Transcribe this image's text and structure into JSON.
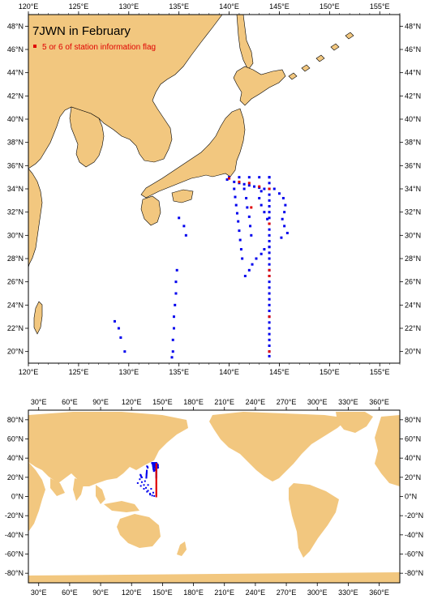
{
  "top_map": {
    "title": "7JWN in February",
    "legend_label": "5 or 6 of station information flag",
    "lon_labels": [
      "120°E",
      "125°E",
      "130°E",
      "135°E",
      "140°E",
      "145°E",
      "150°E",
      "155°E"
    ],
    "lat_labels": [
      "20°N",
      "22°N",
      "24°N",
      "26°N",
      "28°N",
      "30°N",
      "32°N",
      "34°N",
      "36°N",
      "38°N",
      "40°N",
      "42°N",
      "44°N",
      "46°N",
      "48°N"
    ]
  },
  "bottom_map": {
    "lon_labels": [
      "30°E",
      "60°E",
      "90°E",
      "120°E",
      "150°E",
      "180°E",
      "210°E",
      "240°E",
      "270°E",
      "300°E",
      "330°E",
      "360°E"
    ],
    "lat_labels": [
      "80°N",
      "60°N",
      "40°N",
      "20°N",
      "0°N",
      "-20°N",
      "-40°N",
      "-60°N",
      "-80°N"
    ]
  },
  "colors": {
    "land": "#f2c77f",
    "station": "#0000ee",
    "flagged": "#e00000"
  },
  "chart_data": {
    "type": "scatter",
    "title": "7JWN in February",
    "series": [
      {
        "name": "",
        "color": "#0000ee",
        "points": [
          [
            144,
            19.6
          ],
          [
            144,
            20
          ],
          [
            144,
            20.5
          ],
          [
            144,
            21
          ],
          [
            144,
            21.5
          ],
          [
            144,
            22
          ],
          [
            144,
            22.5
          ],
          [
            144,
            23
          ],
          [
            144,
            23.5
          ],
          [
            144,
            24
          ],
          [
            144,
            24.5
          ],
          [
            144,
            25
          ],
          [
            144,
            25.5
          ],
          [
            144,
            26
          ],
          [
            144,
            26.5
          ],
          [
            144,
            27
          ],
          [
            144,
            27.5
          ],
          [
            144,
            28
          ],
          [
            144,
            28.5
          ],
          [
            144,
            29
          ],
          [
            144,
            29.5
          ],
          [
            144,
            30
          ],
          [
            144,
            30.5
          ],
          [
            144,
            31
          ],
          [
            144,
            31.5
          ],
          [
            144,
            32
          ],
          [
            144,
            32.5
          ],
          [
            144,
            33
          ],
          [
            144,
            33.5
          ],
          [
            144,
            34
          ],
          [
            144,
            34.5
          ],
          [
            144,
            35
          ],
          [
            140,
            35
          ],
          [
            141,
            35
          ],
          [
            142,
            35
          ],
          [
            143,
            35
          ],
          [
            144,
            35
          ],
          [
            139.8,
            34.8
          ],
          [
            140.5,
            34.6
          ],
          [
            141,
            34.5
          ],
          [
            141.5,
            34.4
          ],
          [
            142,
            34.3
          ],
          [
            142.5,
            34.2
          ],
          [
            143,
            34.1
          ],
          [
            143.5,
            34
          ],
          [
            143.2,
            33.8
          ],
          [
            143,
            33.2
          ],
          [
            143.2,
            32.6
          ],
          [
            143.5,
            32
          ],
          [
            143.8,
            31.4
          ],
          [
            144.5,
            34
          ],
          [
            145,
            33.6
          ],
          [
            145.4,
            33.2
          ],
          [
            145.6,
            32.6
          ],
          [
            145.5,
            32
          ],
          [
            145.3,
            31.4
          ],
          [
            145.5,
            30.8
          ],
          [
            145.8,
            30.2
          ],
          [
            145.2,
            29.8
          ],
          [
            144,
            29
          ],
          [
            143.5,
            28.8
          ],
          [
            143.2,
            28.4
          ],
          [
            142.7,
            28
          ],
          [
            142.3,
            27.5
          ],
          [
            142,
            27
          ],
          [
            141.6,
            26.5
          ],
          [
            140.5,
            34
          ],
          [
            140.6,
            33.3
          ],
          [
            140.7,
            32.6
          ],
          [
            140.8,
            31.9
          ],
          [
            140.9,
            31.2
          ],
          [
            141,
            30.4
          ],
          [
            141.1,
            29.6
          ],
          [
            141.2,
            28.8
          ],
          [
            141.3,
            28
          ],
          [
            141.5,
            34
          ],
          [
            141.7,
            33.2
          ],
          [
            141.8,
            32.4
          ],
          [
            142,
            31.6
          ],
          [
            142.1,
            30.8
          ],
          [
            142.2,
            30
          ],
          [
            135,
            31.5
          ],
          [
            135.5,
            30.8
          ],
          [
            135.7,
            30
          ],
          [
            134.8,
            27
          ],
          [
            134.7,
            26
          ],
          [
            134.7,
            25
          ],
          [
            134.6,
            24
          ],
          [
            134.5,
            23
          ],
          [
            134.5,
            22
          ],
          [
            134.4,
            21
          ],
          [
            134.4,
            20
          ],
          [
            134.3,
            19.5
          ],
          [
            128.6,
            22.6
          ],
          [
            129,
            22
          ],
          [
            129.2,
            21.2
          ],
          [
            129.6,
            20
          ]
        ]
      },
      {
        "name": "5 or 6 of station information flag",
        "color": "#e00000",
        "points": [
          [
            140,
            34.9
          ],
          [
            141,
            34.6
          ],
          [
            142,
            34.5
          ],
          [
            143,
            34.2
          ],
          [
            144,
            34
          ],
          [
            144,
            31
          ],
          [
            144,
            27
          ],
          [
            144,
            26.5
          ],
          [
            144,
            23
          ],
          [
            142.2,
            32.4
          ],
          [
            144,
            20
          ]
        ]
      }
    ],
    "xlim": [
      120,
      157
    ],
    "ylim": [
      19,
      49
    ]
  }
}
